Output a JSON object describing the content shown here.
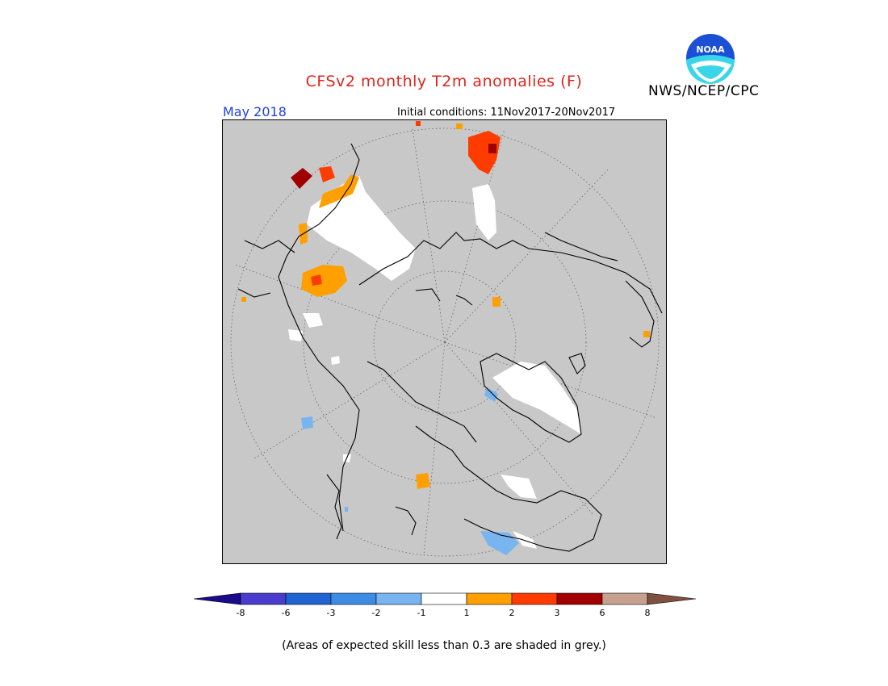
{
  "title": "CFSv2 monthly T2m anomalies (F)",
  "org": "NWS/NCEP/CPC",
  "logo_text": "NOAA",
  "month": "May 2018",
  "initial_conditions": "Initial conditions: 11Nov2017-20Nov2017",
  "note": "(Areas of expected skill less than 0.3 are shaded in grey.)",
  "colors": {
    "background": "#c8c8c8",
    "coast": "#000000"
  },
  "colorbar": {
    "labels": [
      "-8",
      "-6",
      "-3",
      "-2",
      "-1",
      "1",
      "2",
      "3",
      "6",
      "8"
    ],
    "colors": [
      "#1a0a8c",
      "#4a3ccc",
      "#1e64d2",
      "#3c8ce6",
      "#78b4f0",
      "#ffffff",
      "#ffa000",
      "#ff3c00",
      "#a00000",
      "#c8a090",
      "#805040"
    ]
  }
}
